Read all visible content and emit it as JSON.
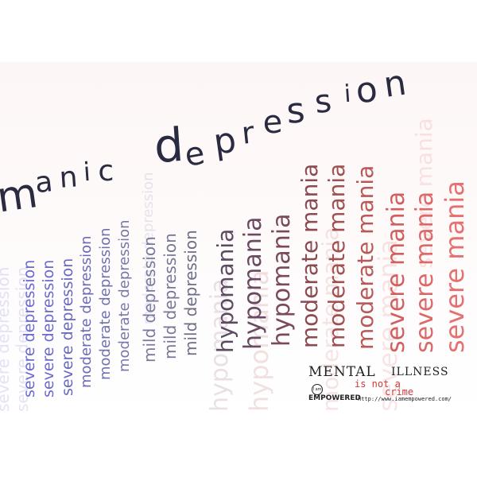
{
  "title": {
    "text": "manic depression",
    "color": "#2a2a40"
  },
  "columns": {
    "severe_depression": "severe depression",
    "moderate_depression": "moderate depression",
    "mild_depression": "mild depression",
    "hypomania": "hypomania",
    "moderate_mania": "moderate mania",
    "severe_mania": "severe mania"
  },
  "colors": {
    "depression": "#6a6ad0",
    "mild": "#7a7aa8",
    "hypo": "#6a4a6a",
    "moderate_mania": "#c05050",
    "mania": "#e06a6a"
  },
  "logo": {
    "mental": "MENTAL",
    "illness": "ILLNESS",
    "is_not_a": "is not a",
    "crime": "crime",
    "iam": "I am",
    "empowered": "EMPOWERED",
    "url": "http://www.iamempowered.com/"
  }
}
